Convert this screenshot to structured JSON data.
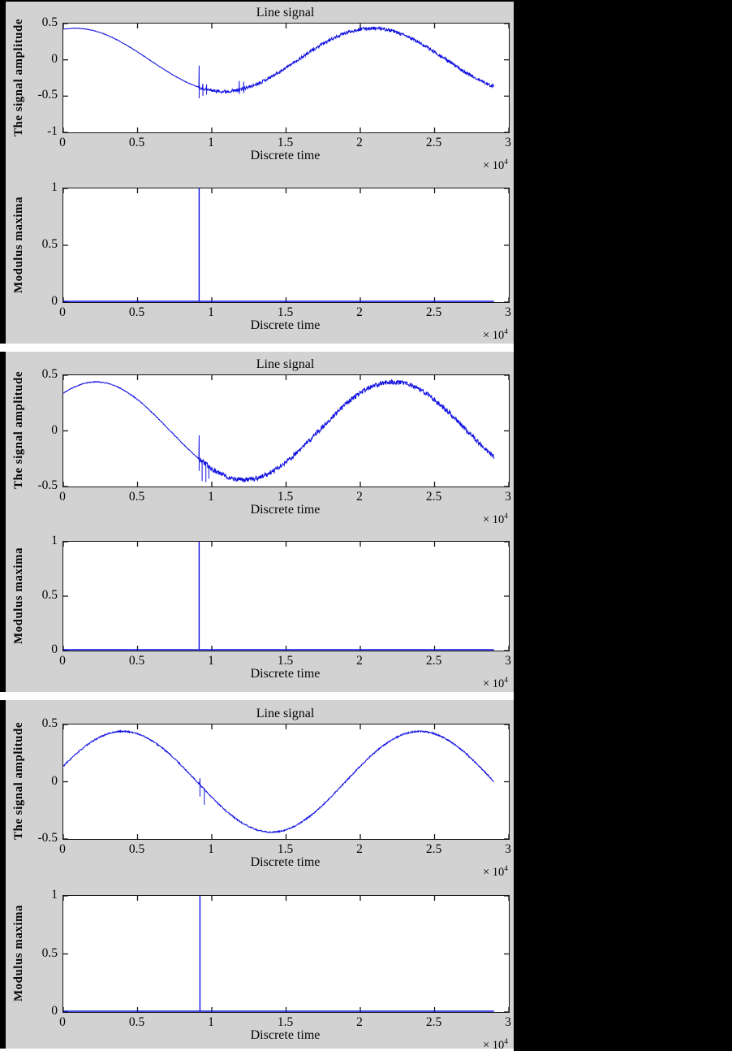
{
  "figure": {
    "page_bg": "#000000",
    "panel_bg": "#d2d2d2",
    "plot_bg": "#ffffff",
    "axis_color": "#141414",
    "line_color": "#1010e0",
    "text_color": "#060606"
  },
  "chart_data": [
    {
      "type": "line",
      "title": "Line signal",
      "ylabel": "The signal amplitude",
      "xlabel": "Discrete time",
      "x_scale_base": "× 10",
      "x_scale_exp": "4",
      "xlim": [
        0,
        30000
      ],
      "ylim": [
        -1,
        0.5
      ],
      "xtick_values": [
        0,
        5000,
        10000,
        15000,
        20000,
        25000,
        30000
      ],
      "xtick_labels": [
        "0",
        "0.5",
        "1",
        "1.5",
        "2",
        "2.5",
        "3"
      ],
      "ytick_values": [
        0.5,
        0,
        -0.5,
        -1
      ],
      "ytick_labels": [
        "0.5",
        "0",
        "-0.5",
        "-1"
      ],
      "grid": false,
      "legend": null,
      "signal": {
        "type": "noisy_sine",
        "amplitude": 0.435,
        "period": 20000,
        "peak_x": 800,
        "x_start": 0,
        "x_end": 29000,
        "step": 25,
        "seed": 11,
        "noise_before": 0.004,
        "noise_after": 0.022,
        "noise_change_x": 9150,
        "spikes": [
          {
            "x": 9150,
            "top": -0.08,
            "bottom": -0.53
          },
          {
            "x": 9400,
            "top": -0.33,
            "bottom": -0.5
          },
          {
            "x": 9650,
            "top": -0.34,
            "bottom": -0.48
          },
          {
            "x": 11850,
            "top": -0.29,
            "bottom": -0.47
          },
          {
            "x": 12150,
            "top": -0.3,
            "bottom": -0.46
          }
        ]
      }
    },
    {
      "type": "line",
      "title": null,
      "ylabel": "Modulus maxima",
      "xlabel": "Discrete time",
      "x_scale_base": "× 10",
      "x_scale_exp": "4",
      "xlim": [
        0,
        30000
      ],
      "ylim": [
        0,
        1
      ],
      "xtick_values": [
        0,
        5000,
        10000,
        15000,
        20000,
        25000,
        30000
      ],
      "xtick_labels": [
        "0",
        "0.5",
        "1",
        "1.5",
        "2",
        "2.5",
        "3"
      ],
      "ytick_values": [
        1,
        0.5,
        0
      ],
      "ytick_labels": [
        "1",
        "0.5",
        "0"
      ],
      "grid": false,
      "legend": null,
      "signal": {
        "type": "impulse",
        "baseline": 0,
        "x_start": 0,
        "x_end": 29000,
        "spikes": [
          {
            "x": 9150,
            "height": 1
          }
        ]
      }
    },
    {
      "type": "line",
      "title": "Line signal",
      "ylabel": "The signal amplitude",
      "xlabel": "Discrete time",
      "x_scale_base": "× 10",
      "x_scale_exp": "4",
      "xlim": [
        0,
        30000
      ],
      "ylim": [
        -0.5,
        0.5
      ],
      "xtick_values": [
        0,
        5000,
        10000,
        15000,
        20000,
        25000,
        30000
      ],
      "xtick_labels": [
        "0",
        "0.5",
        "1",
        "1.5",
        "2",
        "2.5",
        "3"
      ],
      "ytick_values": [
        0.5,
        0,
        -0.5
      ],
      "ytick_labels": [
        "0.5",
        "0",
        "-0.5"
      ],
      "grid": false,
      "legend": null,
      "signal": {
        "type": "noisy_sine",
        "amplitude": 0.44,
        "period": 20000,
        "peak_x": 2200,
        "x_start": 0,
        "x_end": 29000,
        "step": 25,
        "seed": 22,
        "noise_before": 0.004,
        "noise_after": 0.022,
        "noise_change_x": 9150,
        "spikes": [
          {
            "x": 9150,
            "top": -0.04,
            "bottom": -0.36
          },
          {
            "x": 9350,
            "top": -0.27,
            "bottom": -0.45
          },
          {
            "x": 9600,
            "top": -0.3,
            "bottom": -0.46
          },
          {
            "x": 9800,
            "top": -0.31,
            "bottom": -0.43
          }
        ]
      }
    },
    {
      "type": "line",
      "title": null,
      "ylabel": "Modulus maxima",
      "xlabel": "Discrete time",
      "x_scale_base": "× 10",
      "x_scale_exp": "4",
      "xlim": [
        0,
        30000
      ],
      "ylim": [
        0,
        1
      ],
      "xtick_values": [
        0,
        5000,
        10000,
        15000,
        20000,
        25000,
        30000
      ],
      "xtick_labels": [
        "0",
        "0.5",
        "1",
        "1.5",
        "2",
        "2.5",
        "3"
      ],
      "ytick_values": [
        1,
        0.5,
        0
      ],
      "ytick_labels": [
        "1",
        "0.5",
        "0"
      ],
      "grid": false,
      "legend": null,
      "signal": {
        "type": "impulse",
        "baseline": 0,
        "x_start": 0,
        "x_end": 29000,
        "spikes": [
          {
            "x": 9150,
            "height": 1
          }
        ]
      }
    },
    {
      "type": "line",
      "title": "Line signal",
      "ylabel": "The signal amplitude",
      "xlabel": "Discrete time",
      "x_scale_base": "× 10",
      "x_scale_exp": "4",
      "xlim": [
        0,
        30000
      ],
      "ylim": [
        -0.5,
        0.5
      ],
      "xtick_values": [
        0,
        5000,
        10000,
        15000,
        20000,
        25000,
        30000
      ],
      "xtick_labels": [
        "0",
        "0.5",
        "1",
        "1.5",
        "2",
        "2.5",
        "3"
      ],
      "ytick_values": [
        0.5,
        0,
        -0.5
      ],
      "ytick_labels": [
        "0.5",
        "0",
        "-0.5"
      ],
      "grid": false,
      "legend": null,
      "signal": {
        "type": "noisy_sine",
        "amplitude": 0.44,
        "period": 20000,
        "peak_x": 4000,
        "x_start": 0,
        "x_end": 29000,
        "step": 25,
        "seed": 33,
        "noise_before": 0.006,
        "noise_after": 0.006,
        "noise_change_x": 9150,
        "spikes": [
          {
            "x": 9200,
            "top": 0.03,
            "bottom": -0.13
          },
          {
            "x": 9500,
            "top": -0.06,
            "bottom": -0.2
          }
        ]
      }
    },
    {
      "type": "line",
      "title": null,
      "ylabel": "Modulus maxima",
      "xlabel": "Discrete time",
      "x_scale_base": "× 10",
      "x_scale_exp": "4",
      "xlim": [
        0,
        30000
      ],
      "ylim": [
        0,
        1
      ],
      "xtick_values": [
        0,
        5000,
        10000,
        15000,
        20000,
        25000,
        30000
      ],
      "xtick_labels": [
        "0",
        "0.5",
        "1",
        "1.5",
        "2",
        "2.5",
        "3"
      ],
      "ytick_values": [
        1,
        0.5,
        0
      ],
      "ytick_labels": [
        "1",
        "0.5",
        "0"
      ],
      "grid": false,
      "legend": null,
      "signal": {
        "type": "impulse",
        "baseline": 0,
        "x_start": 0,
        "x_end": 29000,
        "spikes": [
          {
            "x": 9200,
            "height": 1
          }
        ]
      }
    }
  ]
}
